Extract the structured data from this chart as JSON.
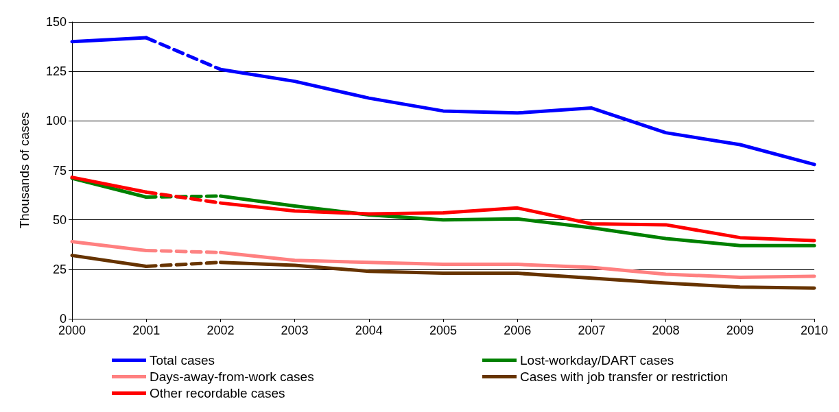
{
  "chart_data": {
    "type": "line",
    "ylabel": "Thousands of cases",
    "x": [
      2000,
      2001,
      2001.5,
      2002,
      2003,
      2004,
      2005,
      2006,
      2007,
      2008,
      2009,
      2010
    ],
    "xlim": [
      2000,
      2010
    ],
    "xticks": [
      2000,
      2001,
      2002,
      2003,
      2004,
      2005,
      2006,
      2007,
      2008,
      2009,
      2010
    ],
    "ylim": [
      0,
      150
    ],
    "yticks": [
      0,
      25,
      50,
      75,
      100,
      125,
      150
    ],
    "grid": "y",
    "legend": "bottom",
    "marker": "none",
    "line_style": "solid",
    "series": [
      {
        "name": "Total cases",
        "color": "#0000ff",
        "values": [
          140,
          142,
          null,
          126,
          120,
          111.5,
          105,
          104,
          106.5,
          94,
          88,
          78
        ]
      },
      {
        "name": "Lost-workday/DART cases",
        "color": "#008000",
        "values": [
          71,
          61.5,
          null,
          62,
          57,
          52.5,
          50,
          50.5,
          46,
          40.5,
          37,
          37
        ]
      },
      {
        "name": "Days-away-from-work cases",
        "color": "#ff8080",
        "values": [
          39,
          34.5,
          null,
          33.5,
          29.5,
          28.5,
          27.5,
          27.5,
          26,
          22.5,
          21,
          21.5
        ]
      },
      {
        "name": "Cases with job transfer or restriction",
        "color": "#663300",
        "values": [
          32,
          26.5,
          null,
          28.5,
          27,
          24,
          23,
          23,
          20.5,
          18,
          16,
          15.5
        ]
      },
      {
        "name": "Other recordable cases",
        "color": "#ff0000",
        "values": [
          71.5,
          64,
          null,
          58.5,
          54.5,
          53,
          53.5,
          56,
          48,
          47.5,
          41,
          39.5
        ]
      },
      {
        "color": "#0202fd",
        "line_style": "dashed",
        "values": [
          null,
          142,
          null,
          126,
          null,
          null,
          null,
          null,
          null,
          null,
          null,
          null
        ]
      },
      {
        "color": "#028202",
        "line_style": "dashed",
        "values": [
          null,
          61.5,
          null,
          62,
          null,
          null,
          null,
          null,
          null,
          null,
          null,
          null
        ]
      },
      {
        "color": "#fd8282",
        "line_style": "dashed",
        "values": [
          null,
          34.5,
          null,
          33.5,
          null,
          null,
          null,
          null,
          null,
          null,
          null,
          null
        ]
      },
      {
        "color": "#683502",
        "line_style": "dashed",
        "values": [
          null,
          26.5,
          null,
          28.5,
          null,
          null,
          null,
          null,
          null,
          null,
          null,
          null
        ]
      },
      {
        "color": "#fd0202",
        "line_style": "dashed",
        "values": [
          null,
          64,
          null,
          58.5,
          null,
          null,
          null,
          null,
          null,
          null,
          null,
          null
        ]
      }
    ]
  }
}
